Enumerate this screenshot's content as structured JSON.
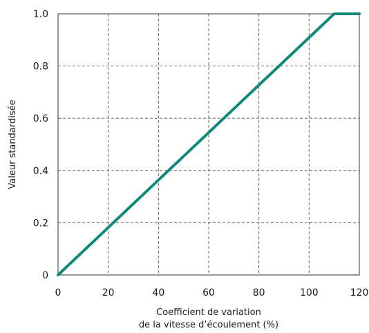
{
  "chart_data": {
    "type": "line",
    "title": "",
    "xlabel_lines": [
      "Coefficient de variation",
      "de la vitesse d’écoulement (%)"
    ],
    "ylabel": "Valeur standardisée",
    "xlim": [
      0,
      120
    ],
    "ylim": [
      0,
      1.0
    ],
    "x_ticks": [
      0,
      20,
      40,
      60,
      80,
      100,
      120
    ],
    "y_ticks": [
      0,
      0.2,
      0.4,
      0.6,
      0.8,
      1.0
    ],
    "y_tick_labels": [
      "0",
      "0.2",
      "0.4",
      "0.6",
      "0.8",
      "1.0"
    ],
    "grid": true,
    "series": [
      {
        "x": [
          0,
          110,
          120
        ],
        "y": [
          0,
          1.0,
          1.0
        ]
      }
    ],
    "line_color": "#11897a"
  }
}
